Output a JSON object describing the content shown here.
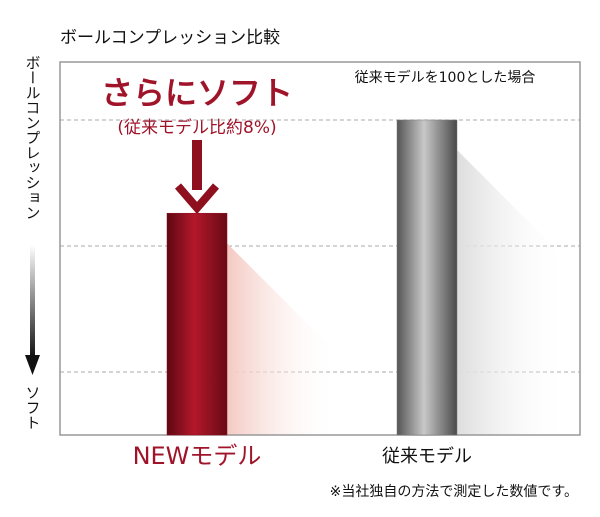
{
  "chart_data": {
    "type": "bar",
    "title": "ボールコンプレッション比較",
    "y_label": "ボールコンプレッション",
    "y_direction_label": "ソフト",
    "annotation": "従来モデルを100とした場合",
    "callout_title": "さらにソフト",
    "callout_note": "(従来モデル比約8%)",
    "footnote": "※当社独自の方法で測定した数値です。",
    "categories": [
      "NEWモデル",
      "従来モデル"
    ],
    "values": [
      92.6,
      100
    ],
    "colors": [
      "#8e0f1e",
      "#7a7a7a"
    ],
    "ylim": [
      75,
      104.6
    ],
    "grid_lines": [
      80,
      90,
      100
    ]
  }
}
